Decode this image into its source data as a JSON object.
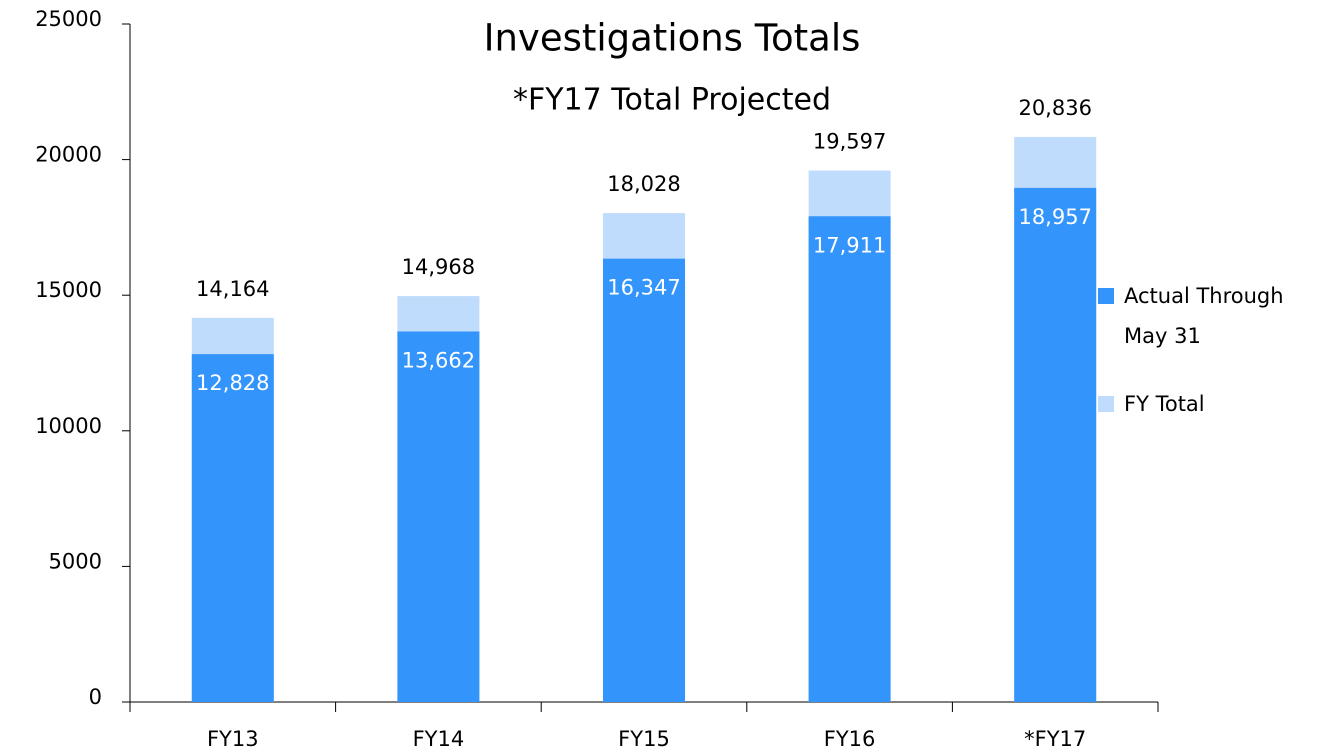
{
  "chart_data": {
    "type": "overlay-bar",
    "title": "Investigations Totals",
    "subtitle": "*FY17 Total Projected",
    "categories": [
      "FY13",
      "FY14",
      "FY15",
      "FY16",
      "*FY17"
    ],
    "series": [
      {
        "name": "Actual Through May 31",
        "color": "#3394fc",
        "values": [
          12828,
          13662,
          16347,
          17911,
          18957
        ],
        "value_labels": [
          "12,828",
          "13,662",
          "16,347",
          "17,911",
          "18,957"
        ]
      },
      {
        "name": "FY Total",
        "color": "#c0dcfc",
        "values": [
          14164,
          14968,
          18028,
          19597,
          20836
        ],
        "value_labels": [
          "14,164",
          "14,968",
          "18,028",
          "19,597",
          "20,836"
        ]
      }
    ],
    "ylim": [
      0,
      25000
    ],
    "yticks": [
      0,
      5000,
      10000,
      15000,
      20000,
      25000
    ],
    "grid": false,
    "legend": "right"
  }
}
